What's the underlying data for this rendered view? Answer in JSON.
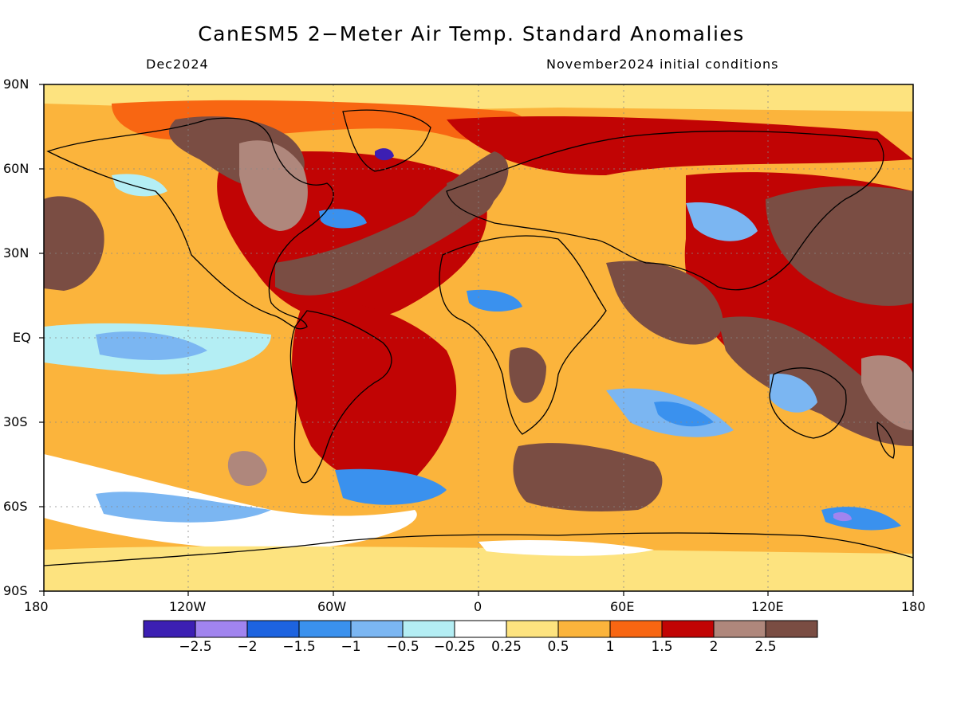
{
  "title": "CanESM5 2−Meter Air Temp. Standard Anomalies",
  "valid_period": "Dec2024",
  "initial_conditions": "November2024 initial conditions",
  "lat_labels": [
    "90N",
    "60N",
    "30N",
    "EQ",
    "30S",
    "60S",
    "90S"
  ],
  "lon_labels": [
    "180",
    "120W",
    "60W",
    "0",
    "60E",
    "120E",
    "180"
  ],
  "colorbar": {
    "colors": [
      "#3c1fb3",
      "#a184ef",
      "#1d63e0",
      "#3a91ee",
      "#7bb6f2",
      "#b4eef4",
      "#ffffff",
      "#fde37f",
      "#fbb43c",
      "#f86612",
      "#c10404",
      "#af877c",
      "#7a4d43"
    ],
    "labels": [
      "−2.5",
      "−2",
      "−1.5",
      "−1",
      "−0.5",
      "−0.25",
      "0.25",
      "0.5",
      "1",
      "1.5",
      "2",
      "2.5"
    ]
  }
}
